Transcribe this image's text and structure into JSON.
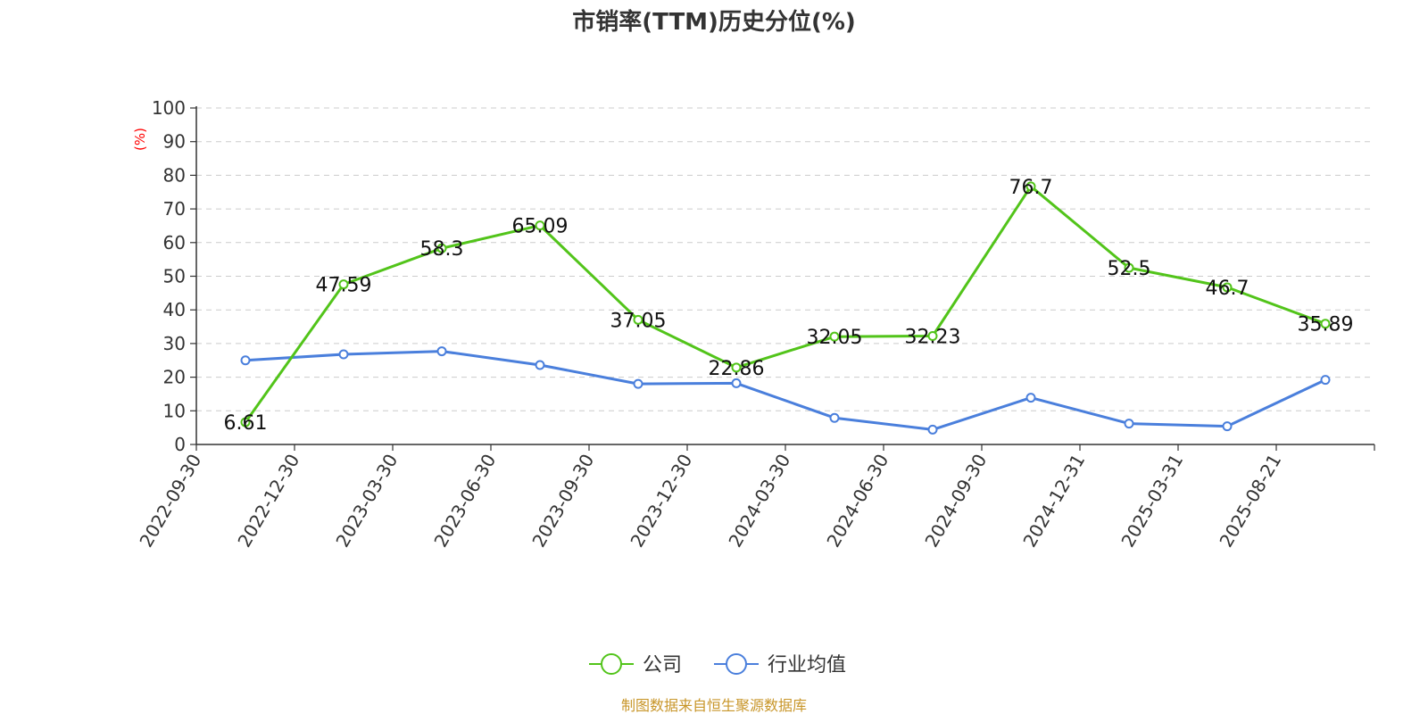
{
  "chart_data": {
    "type": "line",
    "title": "市销率(TTM)历史分位(%)",
    "ylabel": "(%)",
    "ylim": [
      0,
      100
    ],
    "yticks": [
      0,
      10,
      20,
      30,
      40,
      50,
      60,
      70,
      80,
      90,
      100
    ],
    "grid": true,
    "legend_position": "bottom",
    "categories": [
      "2022-09-30",
      "2022-12-30",
      "2023-03-30",
      "2023-06-30",
      "2023-09-30",
      "2023-12-30",
      "2024-03-30",
      "2024-06-30",
      "2024-09-30",
      "2024-12-31",
      "2025-03-31",
      "2025-08-21"
    ],
    "series": [
      {
        "name": "公司",
        "color": "#52c41a",
        "values": [
          6.61,
          47.59,
          58.3,
          65.09,
          37.05,
          22.86,
          32.05,
          32.23,
          76.7,
          52.5,
          46.7,
          35.89
        ],
        "labels": [
          "6.61",
          "47.59",
          "58.3",
          "65.09",
          "37.05",
          "22.86",
          "32.05",
          "32.23",
          "76.7",
          "52.5",
          "46.7",
          "35.89"
        ]
      },
      {
        "name": "行业均值",
        "color": "#4a7fdc",
        "values": [
          25.0,
          26.8,
          27.7,
          23.6,
          18.0,
          18.2,
          7.9,
          4.4,
          13.9,
          6.2,
          5.4,
          19.2
        ]
      }
    ]
  },
  "source_note": "制图数据来自恒生聚源数据库"
}
